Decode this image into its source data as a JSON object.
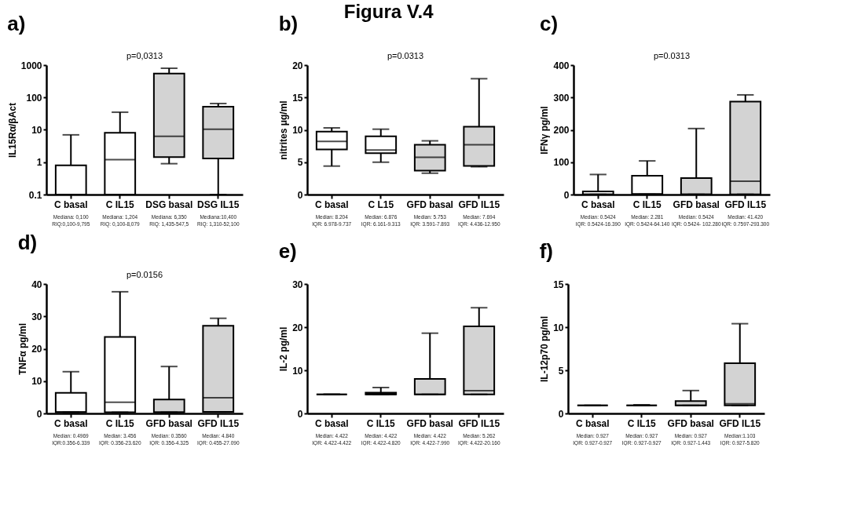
{
  "chart_data": [
    {
      "type": "box",
      "title": "a)",
      "ylabel": "IL15Rα/βAct",
      "log": true,
      "categories": [
        "C basal",
        "C IL15",
        "DSG basal",
        "DSG IL15"
      ],
      "colors": [
        "#ffffff",
        "#ffffff",
        "#d3d3d3",
        "#d3d3d3"
      ],
      "ylim": [
        0.1,
        1000
      ],
      "yticks": [
        0.1,
        1,
        10,
        100,
        1000
      ],
      "boxes": [
        {
          "low": 0.1,
          "q1": 0.1,
          "median": 0.1,
          "q3": 0.8,
          "high": 7
        },
        {
          "low": 0.1,
          "q1": 0.1,
          "median": 1.204,
          "q3": 8.079,
          "high": 35
        },
        {
          "low": 0.9,
          "q1": 1.435,
          "median": 6.35,
          "q3": 547.5,
          "high": 800
        },
        {
          "low": 0.1,
          "q1": 1.31,
          "median": 10.4,
          "q3": 52.1,
          "high": 65
        }
      ],
      "annotations": [
        "p=0,0313",
        "Mediana: 0,100\nRIQ:0,100-9,795",
        "Mediana: 1,204\nRIQ: 0,100-8,079",
        "Mediana: 6,350\nRIQ: 1,435-547,5",
        "Mediana:10,400\nRIQ: 1,310-52,100"
      ]
    },
    {
      "type": "box",
      "title": "Figura V.4",
      "subtitle": "b)",
      "ylabel": "nitrites μg/ml",
      "categories": [
        "C basal",
        "C L15",
        "GFD basal",
        "GFD IL15"
      ],
      "colors": [
        "#ffffff",
        "#ffffff",
        "#d3d3d3",
        "#d3d3d3"
      ],
      "ylim": [
        0,
        20
      ],
      "yticks": [
        0,
        5,
        10,
        15,
        20
      ],
      "boxes": [
        {
          "low": 4.4,
          "q1": 6.978,
          "median": 8.204,
          "q3": 9.737,
          "high": 10.3
        },
        {
          "low": 5.0,
          "q1": 6.4,
          "median": 6.876,
          "q3": 9.0,
          "high": 10.1
        },
        {
          "low": 3.3,
          "q1": 3.7,
          "median": 5.753,
          "q3": 7.7,
          "high": 8.3
        },
        {
          "low": 4.3,
          "q1": 4.436,
          "median": 7.694,
          "q3": 10.5,
          "high": 17.9
        }
      ],
      "annotations": [
        "p=0.0313",
        "Median: 8.204\nIQR: 6.978-9.737",
        "Median: 6.876\nIQR: 6.161-9.313",
        "Median: 5.753\nIQR: 3.591-7.893",
        "Median: 7.694\nIQR: 4.436-12.950"
      ]
    },
    {
      "type": "box",
      "title": "c)",
      "ylabel": "IFNγ pg/ml",
      "categories": [
        "C basal",
        "C IL15",
        "GFD basal",
        "GFD IL15"
      ],
      "colors": [
        "#ffffff",
        "#ffffff",
        "#d3d3d3",
        "#d3d3d3"
      ],
      "ylim": [
        0,
        400
      ],
      "yticks": [
        0,
        100,
        200,
        300,
        400
      ],
      "boxes": [
        {
          "low": 0.5424,
          "q1": 0.5424,
          "median": 0.5424,
          "q3": 10,
          "high": 62
        },
        {
          "low": 0.5424,
          "q1": 0.5424,
          "median": 2.281,
          "q3": 58,
          "high": 104
        },
        {
          "low": 0.5424,
          "q1": 0.5424,
          "median": 0.5424,
          "q3": 51,
          "high": 204
        },
        {
          "low": 0.7597,
          "q1": 0.7597,
          "median": 41.42,
          "q3": 287,
          "high": 308
        }
      ],
      "annotations": [
        "p=0.0313",
        "Median: 0.5424\nIQR: 0.5424-16.390",
        "Median: 2.281\nIQR: 0.5424-64.140",
        "Median: 0.5424\nIQR: 0.5424- 102.280",
        "Median: 41.420\nIQR: 0.7597-293.300"
      ]
    },
    {
      "type": "box",
      "title": "d)",
      "ylabel": "TNFα pg/ml",
      "categories": [
        "C basal",
        "C IL15",
        "GFD basal",
        "GFD IL15"
      ],
      "colors": [
        "#ffffff",
        "#ffffff",
        "#d3d3d3",
        "#d3d3d3"
      ],
      "ylim": [
        0,
        40
      ],
      "yticks": [
        0,
        10,
        20,
        30,
        40
      ],
      "boxes": [
        {
          "low": 0.356,
          "q1": 0.356,
          "median": 0.4969,
          "q3": 6.339,
          "high": 12.9
        },
        {
          "low": 0.356,
          "q1": 0.356,
          "median": 3.456,
          "q3": 23.62,
          "high": 37.6
        },
        {
          "low": 0.356,
          "q1": 0.356,
          "median": 0.356,
          "q3": 4.325,
          "high": 14.5
        },
        {
          "low": 0.455,
          "q1": 0.455,
          "median": 4.84,
          "q3": 27.09,
          "high": 29.4
        }
      ],
      "annotations": [
        "p=0.0156",
        "Median: 0.4969\nIQR:0.356-6.339",
        "Median: 3.456\nIQR: 0.356-23.620",
        "Median: 0.3560\nIQR: 0.356-4.325",
        "Median: 4.840\nIQR: 0.455-27.090"
      ]
    },
    {
      "type": "box",
      "title": "e)",
      "ylabel": "IL-2 pg/ml",
      "categories": [
        "C basal",
        "C IL15",
        "GFD basal",
        "GFD IL15"
      ],
      "colors": [
        "#000000",
        "#000000",
        "#d3d3d3",
        "#d3d3d3"
      ],
      "ylim": [
        0,
        30
      ],
      "yticks": [
        0,
        10,
        20,
        30
      ],
      "boxes": [
        {
          "low": 4.422,
          "q1": 4.422,
          "median": 4.422,
          "q3": 4.422,
          "high": 4.422
        },
        {
          "low": 4.422,
          "q1": 4.422,
          "median": 4.422,
          "q3": 4.82,
          "high": 6.0
        },
        {
          "low": 4.422,
          "q1": 4.422,
          "median": 4.422,
          "q3": 7.99,
          "high": 18.6
        },
        {
          "low": 4.422,
          "q1": 4.422,
          "median": 5.262,
          "q3": 20.16,
          "high": 24.5
        }
      ],
      "annotations": [
        "Median: 4.422\nIQR: 4.422-4.422",
        "Median: 4.422\nIQR: 4.422-4.820",
        "Median: 4.422\nIQR: 4.422-7.990",
        "Median: 5.262\nIQR: 4.422-20.160"
      ]
    },
    {
      "type": "box",
      "title": "f)",
      "ylabel": "IL-12p70 pg/ml",
      "categories": [
        "C basal",
        "C IL15",
        "GFD basal",
        "GFD IL15"
      ],
      "colors": [
        "#000000",
        "#000000",
        "#d3d3d3",
        "#d3d3d3"
      ],
      "ylim": [
        0,
        15
      ],
      "yticks": [
        0,
        5,
        10,
        15
      ],
      "boxes": [
        {
          "low": 0.927,
          "q1": 0.927,
          "median": 0.927,
          "q3": 0.927,
          "high": 0.927
        },
        {
          "low": 0.927,
          "q1": 0.927,
          "median": 0.927,
          "q3": 0.927,
          "high": 1.0
        },
        {
          "low": 0.927,
          "q1": 0.927,
          "median": 0.927,
          "q3": 1.443,
          "high": 2.65
        },
        {
          "low": 0.927,
          "q1": 0.927,
          "median": 1.103,
          "q3": 5.82,
          "high": 10.4
        }
      ],
      "annotations": [
        "Median: 0.927\nIQR: 0.927-0.927",
        "Median: 0.927\nIQR: 0.927-0.927",
        "Median: 0.927\nIQR: 0.927-1.443",
        "Median:1.103\nIQR: 0.927-5.820"
      ]
    }
  ]
}
